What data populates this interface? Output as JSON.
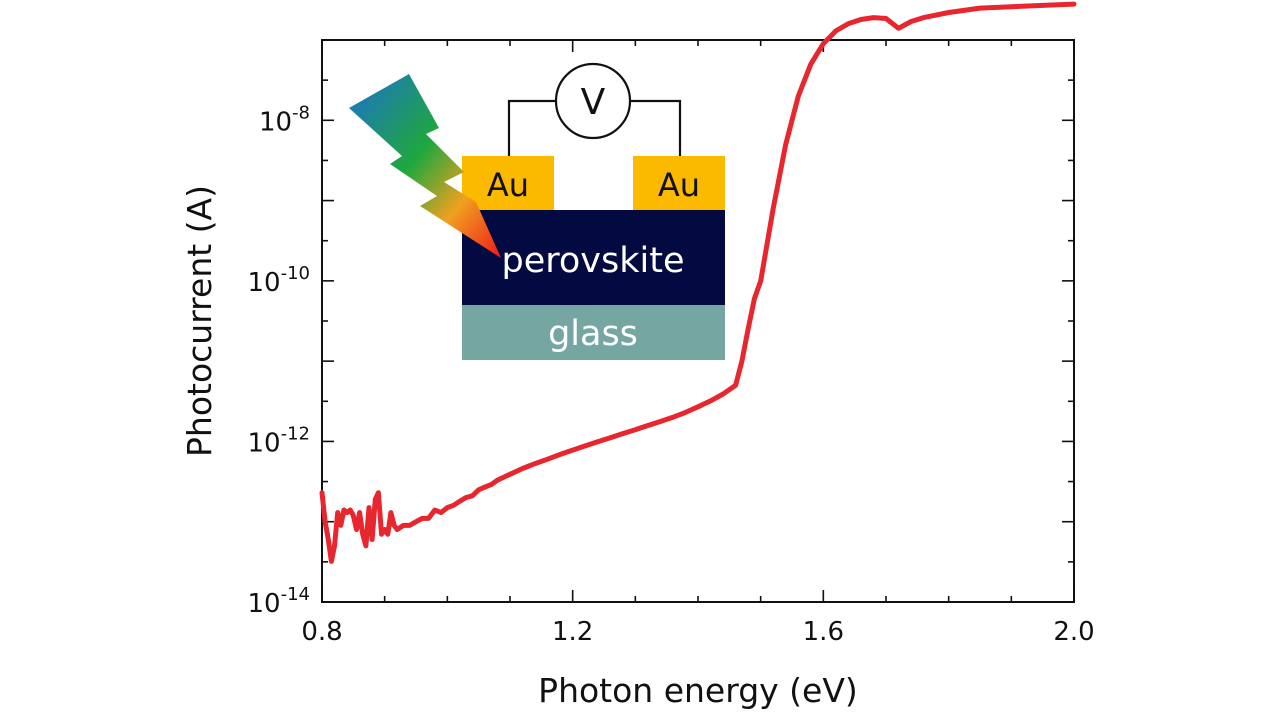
{
  "chart_data": {
    "type": "line",
    "title": "",
    "xlabel": "Photon energy (eV)",
    "ylabel": "Photocurrent (A)",
    "xlim": [
      0.8,
      2.0
    ],
    "ylim_log10": [
      -14,
      -7
    ],
    "y_scale": "log",
    "grid": false,
    "x_ticks": [
      {
        "value": 0.8,
        "label": "0.8"
      },
      {
        "value": 1.2,
        "label": "1.2"
      },
      {
        "value": 1.6,
        "label": "1.6"
      },
      {
        "value": 2.0,
        "label": "2.0"
      }
    ],
    "y_ticks": [
      {
        "exp": -14,
        "base": "10",
        "sup": "-14"
      },
      {
        "exp": -12,
        "base": "10",
        "sup": "-12"
      },
      {
        "exp": -10,
        "base": "10",
        "sup": "-10"
      },
      {
        "exp": -8,
        "base": "10",
        "sup": "-8"
      }
    ],
    "series": [
      {
        "color": "#e8262d",
        "x": [
          0.8,
          0.805,
          0.81,
          0.815,
          0.82,
          0.825,
          0.83,
          0.835,
          0.84,
          0.845,
          0.85,
          0.855,
          0.86,
          0.865,
          0.87,
          0.875,
          0.88,
          0.885,
          0.89,
          0.895,
          0.9,
          0.905,
          0.91,
          0.915,
          0.92,
          0.93,
          0.94,
          0.95,
          0.96,
          0.97,
          0.98,
          0.99,
          1.0,
          1.01,
          1.02,
          1.03,
          1.04,
          1.05,
          1.06,
          1.07,
          1.08,
          1.1,
          1.12,
          1.14,
          1.16,
          1.18,
          1.2,
          1.22,
          1.24,
          1.26,
          1.28,
          1.3,
          1.32,
          1.34,
          1.36,
          1.38,
          1.4,
          1.42,
          1.44,
          1.46,
          1.47,
          1.48,
          1.49,
          1.5,
          1.52,
          1.54,
          1.56,
          1.58,
          1.6,
          1.62,
          1.64,
          1.66,
          1.68,
          1.7,
          1.72,
          1.74,
          1.76,
          1.8,
          1.85,
          1.9,
          1.95,
          2.0
        ],
        "y": [
          2.3e-13,
          1e-13,
          6e-14,
          3.2e-14,
          5e-14,
          1.3e-13,
          9e-14,
          1.4e-13,
          1.3e-13,
          1.4e-13,
          1.2e-13,
          8e-14,
          1.3e-13,
          7e-14,
          5e-14,
          1.5e-13,
          6e-14,
          1.9e-13,
          2.3e-13,
          7e-14,
          8e-14,
          7e-14,
          1.3e-13,
          9e-14,
          8e-14,
          9e-14,
          9e-14,
          1e-13,
          1.1e-13,
          1.1e-13,
          1.4e-13,
          1.3e-13,
          1.5e-13,
          1.6e-13,
          1.8e-13,
          2e-13,
          2.1e-13,
          2.5e-13,
          2.7e-13,
          2.9e-13,
          3.3e-13,
          3.9e-13,
          4.6e-13,
          5.3e-13,
          6e-13,
          6.9e-13,
          7.8e-13,
          8.8e-13,
          9.9e-13,
          1.11e-12,
          1.25e-12,
          1.4e-12,
          1.58e-12,
          1.77e-12,
          2e-12,
          2.3e-12,
          2.7e-12,
          3.2e-12,
          3.9e-12,
          5e-12,
          1e-11,
          2.5e-11,
          6e-11,
          1e-10,
          8e-10,
          5e-09,
          2e-08,
          5e-08,
          9e-08,
          1.3e-07,
          1.6e-07,
          1.8e-07,
          1.9e-07,
          1.85e-07,
          1.4e-07,
          1.7e-07,
          1.9e-07,
          2.2e-07,
          2.5e-07,
          2.6e-07,
          2.7e-07,
          2.8e-07
        ]
      }
    ]
  },
  "inset": {
    "voltmeter_label": "V",
    "left_contact_label": "Au",
    "right_contact_label": "Au",
    "absorber_label": "perovskite",
    "substrate_label": "glass",
    "colors": {
      "gold": "#fbb900",
      "perovskite": "#030a41",
      "glass": "#76a6a2",
      "lightning_start": "#1e6fd0",
      "lightning_mid": "#1ea83c",
      "lightning_end": "#f01818"
    }
  }
}
